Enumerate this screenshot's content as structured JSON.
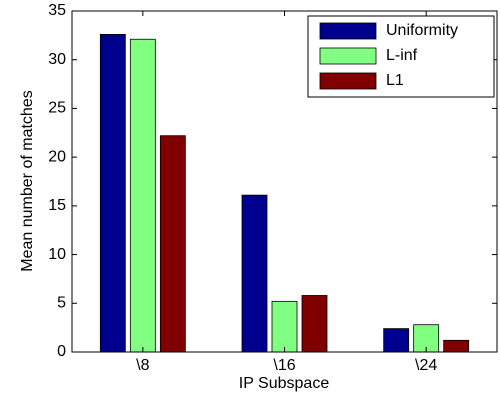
{
  "chart_data": {
    "type": "bar",
    "xlabel": "IP Subspace",
    "ylabel": "Mean number of matches",
    "categories": [
      "\\8",
      "\\16",
      "\\24"
    ],
    "series": [
      {
        "name": "Uniformity",
        "color": "#00008f",
        "values": [
          32.6,
          16.1,
          2.4
        ]
      },
      {
        "name": "L-inf",
        "color": "#80ff80",
        "values": [
          32.1,
          5.2,
          2.8
        ]
      },
      {
        "name": "L1",
        "color": "#800000",
        "values": [
          22.2,
          5.8,
          1.2
        ]
      }
    ],
    "ylim": [
      0,
      35
    ],
    "yticks": [
      0,
      5,
      10,
      15,
      20,
      25,
      30,
      35
    ],
    "grid": false,
    "legend": "upper right"
  }
}
